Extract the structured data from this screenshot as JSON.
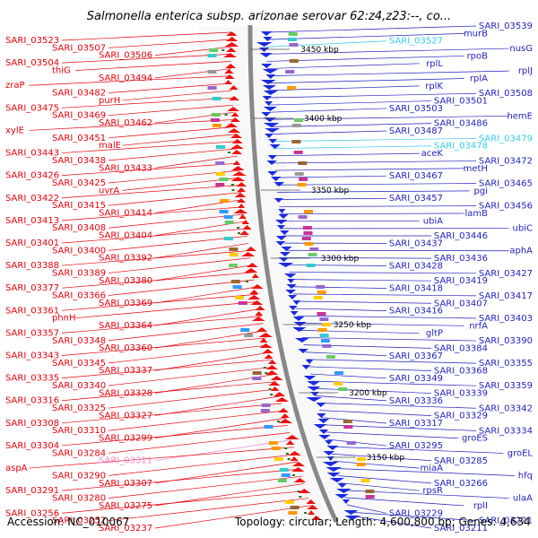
{
  "title": "Salmonella enterica subsp. arizonae serovar 62:z4,z23:--, co...",
  "footer": {
    "accession": "Accession: NC_010067",
    "topology": "Topology: circular; Length: 4,600,800 bp; Genes: 4,634"
  },
  "colors": {
    "left_label": "#e8000b",
    "right_label": "#1f1fbf",
    "highlight_label": "#33ccee",
    "pink_label": "#ee88cc",
    "backbone": "#888888",
    "forward_gene": "#ee1111",
    "reverse_gene": "#1a2be0",
    "tick": "#227722"
  },
  "kbp_ticks": [
    "3450 kbp",
    "3400 kbp",
    "3350 kbp",
    "3300 kbp",
    "3250 kbp",
    "3200 kbp",
    "3150 kbp"
  ],
  "left_labels": [
    "SARI_03523",
    "SARI_03507",
    "SARI_03506",
    "SARI_03504",
    "thiG",
    "SARI_03494",
    "zraP",
    "SARI_03482",
    "purH",
    "SARI_03475",
    "SARI_03469",
    "SARI_03462",
    "xylE",
    "SARI_03451",
    "malE",
    "SARI_03443",
    "SARI_03438",
    "SARI_03433",
    "SARI_03426",
    "SARI_03425",
    "uvrA",
    "SARI_03422",
    "SARI_03415",
    "SARI_03414",
    "SARI_03413",
    "SARI_03408",
    "SARI_03404",
    "SARI_03401",
    "SARI_03400",
    "SARI_03392",
    "SARI_03388",
    "SARI_03389",
    "SARI_03380",
    "SARI_03377",
    "SARI_03366",
    "SARI_03369",
    "SARI_03361",
    "phnH",
    "SARI_03364",
    "SARI_03357",
    "SARI_03348",
    "SARI_03360",
    "SARI_03343",
    "SARI_03345",
    "SARI_03337",
    "SARI_03335",
    "SARI_03340",
    "SARI_03328",
    "SARI_03316",
    "SARI_03325",
    "SARI_03327",
    "SARI_03308",
    "SARI_03310",
    "SARI_03299",
    "SARI_03304",
    "SARI_03284",
    "SARI_03311",
    "aspA",
    "SARI_03290",
    "SARI_03307",
    "SARI_03291",
    "SARI_03280",
    "SARI_03275",
    "SARI_03256",
    "SARI_03252",
    "SARI_03237"
  ],
  "right_labels": [
    "SARI_03539",
    "murB",
    "SARI_03527",
    "nusG",
    "rpoB",
    "rplL",
    "rplJ",
    "rplA",
    "rplK",
    "SARI_03508",
    "SARI_03501",
    "SARI_03503",
    "hemE",
    "SARI_03486",
    "SARI_03487",
    "SARI_03479",
    "SARI_03478",
    "aceK",
    "SARI_03472",
    "metH",
    "SARI_03467",
    "SARI_03465",
    "pgi",
    "SARI_03457",
    "SARI_03456",
    "lamB",
    "ubiA",
    "ubiC",
    "SARI_03446",
    "SARI_03437",
    "aphA",
    "SARI_03436",
    "SARI_03428",
    "SARI_03427",
    "SARI_03419",
    "SARI_03418",
    "SARI_03417",
    "SARI_03407",
    "SARI_03416",
    "SARI_03403",
    "nrfA",
    "gltP",
    "SARI_03390",
    "SARI_03384",
    "SARI_03367",
    "SARI_03355",
    "SARI_03368",
    "SARI_03349",
    "SARI_03359",
    "SARI_03339",
    "SARI_03336",
    "SARI_03342",
    "SARI_03329",
    "SARI_03317",
    "SARI_03334",
    "groES",
    "SARI_03295",
    "groEL",
    "SARI_03285",
    "miaA",
    "hfq",
    "SARI_03266",
    "rpsR",
    "ulaA",
    "rplI",
    "SARI_03229",
    "SARI_03221",
    "SARI_03211"
  ]
}
